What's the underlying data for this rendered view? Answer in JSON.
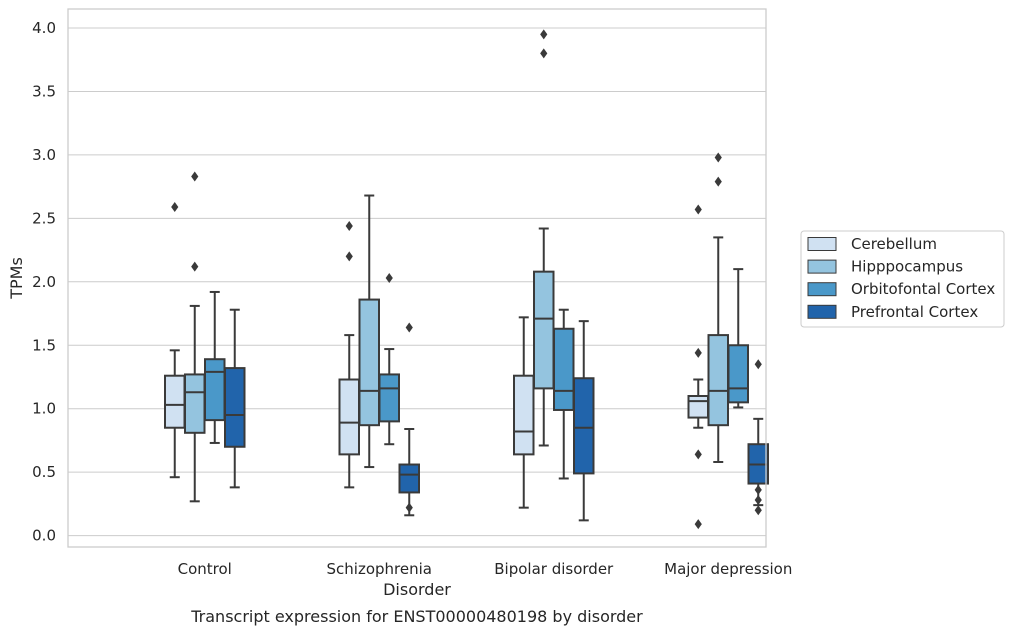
{
  "caption": "Transcript expression for ENST00000480198 by disorder",
  "chart_data": {
    "type": "box",
    "xlabel": "Disorder",
    "ylabel": "TPMs",
    "ylim": [
      -0.09,
      4.15
    ],
    "yticks": [
      "0.0",
      "0.5",
      "1.0",
      "1.5",
      "2.0",
      "2.5",
      "3.0",
      "3.5",
      "4.0"
    ],
    "grid": "horizontal",
    "legend_position": "right",
    "categories": [
      "Control",
      "Schizophrenia",
      "Bipolar disorder",
      "Major depression"
    ],
    "series": [
      {
        "name": "Cerebellum",
        "color": "#d0e1f2",
        "boxes": [
          {
            "whislo": 0.46,
            "q1": 0.85,
            "med": 1.03,
            "q3": 1.26,
            "whishi": 1.46,
            "fliers": [
              2.59
            ]
          },
          {
            "whislo": 0.38,
            "q1": 0.64,
            "med": 0.89,
            "q3": 1.23,
            "whishi": 1.58,
            "fliers": [
              2.2,
              2.44
            ]
          },
          {
            "whislo": 0.22,
            "q1": 0.64,
            "med": 0.82,
            "q3": 1.26,
            "whishi": 1.72,
            "fliers": []
          },
          {
            "whislo": 0.85,
            "q1": 0.93,
            "med": 1.06,
            "q3": 1.1,
            "whishi": 1.23,
            "fliers": [
              0.64,
              1.44,
              2.57,
              0.09
            ]
          }
        ]
      },
      {
        "name": "Hipppocampus",
        "color": "#94c4df",
        "boxes": [
          {
            "whislo": 0.27,
            "q1": 0.81,
            "med": 1.13,
            "q3": 1.27,
            "whishi": 1.81,
            "fliers": [
              2.12,
              2.83
            ]
          },
          {
            "whislo": 0.54,
            "q1": 0.87,
            "med": 1.14,
            "q3": 1.86,
            "whishi": 2.68,
            "fliers": []
          },
          {
            "whislo": 0.71,
            "q1": 1.16,
            "med": 1.71,
            "q3": 2.08,
            "whishi": 2.42,
            "fliers": [
              3.8,
              3.95
            ]
          },
          {
            "whislo": 0.58,
            "q1": 0.87,
            "med": 1.14,
            "q3": 1.58,
            "whishi": 2.35,
            "fliers": [
              2.79,
              2.98
            ]
          }
        ]
      },
      {
        "name": "Orbitofontal Cortex",
        "color": "#4a98c9",
        "boxes": [
          {
            "whislo": 0.73,
            "q1": 0.91,
            "med": 1.29,
            "q3": 1.39,
            "whishi": 1.92,
            "fliers": []
          },
          {
            "whislo": 0.72,
            "q1": 0.9,
            "med": 1.16,
            "q3": 1.27,
            "whishi": 1.47,
            "fliers": [
              2.03
            ]
          },
          {
            "whislo": 0.45,
            "q1": 0.99,
            "med": 1.14,
            "q3": 1.63,
            "whishi": 1.78,
            "fliers": []
          },
          {
            "whislo": 1.01,
            "q1": 1.05,
            "med": 1.16,
            "q3": 1.5,
            "whishi": 2.1,
            "fliers": []
          }
        ]
      },
      {
        "name": "Prefrontal Cortex",
        "color": "#2164ab",
        "boxes": [
          {
            "whislo": 0.38,
            "q1": 0.7,
            "med": 0.95,
            "q3": 1.32,
            "whishi": 1.78,
            "fliers": []
          },
          {
            "whislo": 0.16,
            "q1": 0.34,
            "med": 0.48,
            "q3": 0.56,
            "whishi": 0.84,
            "fliers": [
              0.22,
              1.64
            ]
          },
          {
            "whislo": 0.12,
            "q1": 0.49,
            "med": 0.85,
            "q3": 1.24,
            "whishi": 1.69,
            "fliers": []
          },
          {
            "whislo": 0.24,
            "q1": 0.41,
            "med": 0.56,
            "q3": 0.72,
            "whishi": 0.92,
            "fliers": [
              0.2,
              0.28,
              0.36,
              1.35
            ]
          }
        ]
      }
    ]
  },
  "colors": {
    "grid": "#cccccc",
    "axes_edge": "#cccccc",
    "line": "#3a3a3a",
    "text": "#262626"
  }
}
